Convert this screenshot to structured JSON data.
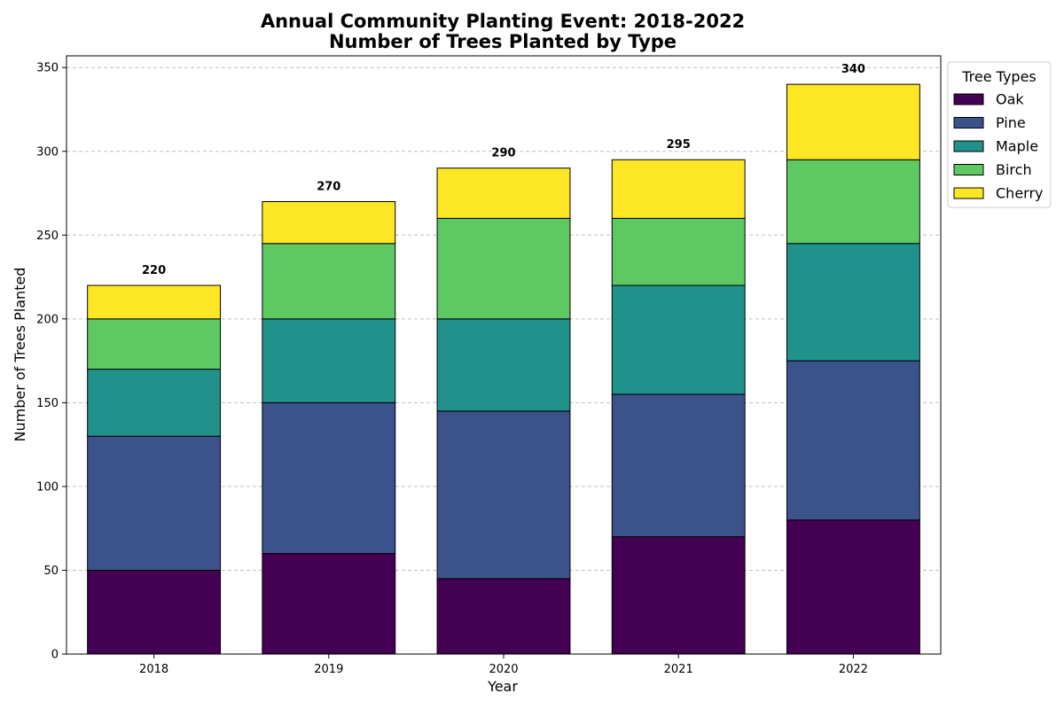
{
  "chart_data": {
    "type": "bar",
    "stacked": true,
    "title": "Annual Community Planting Event: 2018-2022",
    "subtitle": "Number of Trees Planted by Type",
    "xlabel": "Year",
    "ylabel": "Number of Trees Planted",
    "categories": [
      "2018",
      "2019",
      "2020",
      "2021",
      "2022"
    ],
    "ylim": [
      0,
      357
    ],
    "yticks": [
      0,
      50,
      100,
      150,
      200,
      250,
      300,
      350
    ],
    "grid": "y-dashed",
    "legend": {
      "title": "Tree Types",
      "placement": "outside-top-right"
    },
    "series": [
      {
        "name": "Oak",
        "color": "#440154",
        "values": [
          50,
          60,
          45,
          70,
          80
        ]
      },
      {
        "name": "Pine",
        "color": "#3b528b",
        "values": [
          80,
          90,
          100,
          85,
          95
        ]
      },
      {
        "name": "Maple",
        "color": "#21918c",
        "values": [
          40,
          50,
          55,
          65,
          70
        ]
      },
      {
        "name": "Birch",
        "color": "#5ec962",
        "values": [
          30,
          45,
          60,
          40,
          50
        ]
      },
      {
        "name": "Cherry",
        "color": "#fde725",
        "values": [
          20,
          25,
          30,
          35,
          45
        ]
      }
    ],
    "totals": [
      220,
      270,
      290,
      295,
      340
    ]
  }
}
